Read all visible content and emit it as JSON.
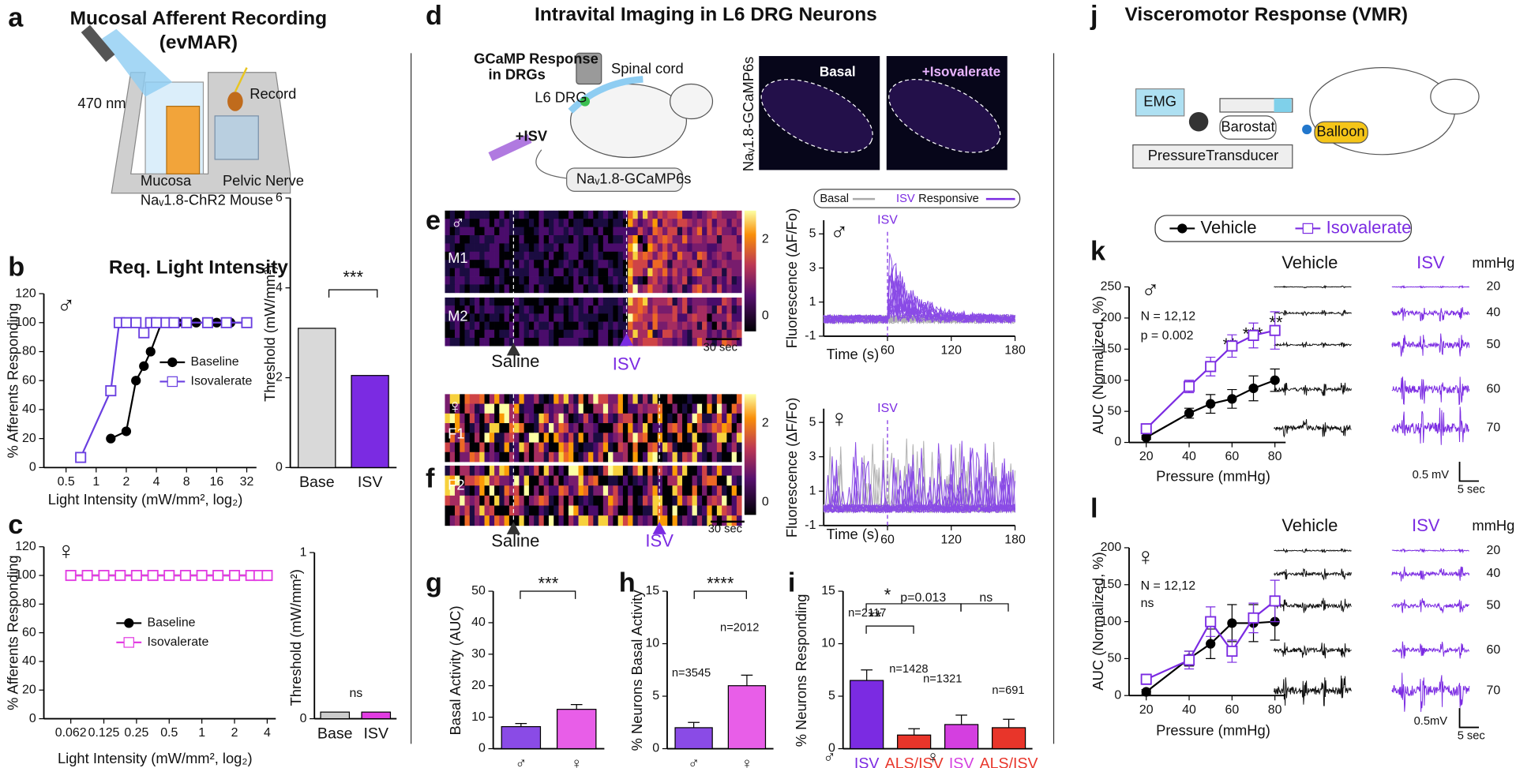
{
  "figure": {
    "panel_labels": [
      "a",
      "b",
      "c",
      "d",
      "e",
      "f",
      "g",
      "h",
      "i",
      "j",
      "k",
      "l"
    ],
    "a": {
      "title": "Mucosal Afferent Recording",
      "subtitle": "(evMAR)",
      "light": "470 nm",
      "record": "Record",
      "mucosa": "Mucosa",
      "nerve": "Pelvic Nerve",
      "mouse": "Naᵥ1.8-ChR2 Mouse"
    },
    "d": {
      "title": "Intravital Imaging in L6 DRG Neurons",
      "response": "GCaMP Response",
      "response2": "in DRGs",
      "spinal": "Spinal cord",
      "drg": "L6 DRG",
      "isv": "+ISV",
      "mouse": "Naᵥ1.8-GCaMP6s",
      "image_label": "Naᵥ1.8-GCaMP6s",
      "basal": "Basal",
      "isovalerate": "+Isovalerate",
      "legend": [
        "Basal",
        "ISV",
        "Responsive"
      ]
    },
    "e": {
      "sex": "♂",
      "rows": [
        "M1",
        "M2"
      ],
      "saline": "Saline",
      "isv": "ISV",
      "scale": "30 sec",
      "colorbar_ticks": [
        0,
        2
      ]
    },
    "f": {
      "sex": "♀",
      "rows": [
        "F1",
        "F2"
      ],
      "saline": "Saline",
      "isv": "ISV",
      "scale": "30 sec",
      "colorbar_ticks": [
        0,
        2
      ]
    },
    "j": {
      "title": "Visceromotor Response (VMR)",
      "emg": "EMG",
      "barostat": "Barostat",
      "balloon": "Balloon",
      "transducer": "PressureTransducer"
    },
    "k_traces": {
      "vehicle": "Vehicle",
      "isv": "ISV",
      "unit": "mmHg",
      "pressures": [
        20,
        40,
        50,
        60,
        70
      ],
      "scale_v": "0.5 mV",
      "scale_t": "5 sec"
    },
    "l_traces": {
      "vehicle": "Vehicle",
      "isv": "ISV",
      "unit": "mmHg",
      "pressures": [
        20,
        40,
        50,
        60,
        70
      ],
      "scale_v": "0.5mV",
      "scale_t": "5 sec"
    }
  },
  "chart_data": [
    {
      "type": "line",
      "title": "Req. Light Intensity",
      "sex": "♂",
      "x_label": "Light Intensity (mW/mm², log₂)",
      "y_label": "% Afferents Responding",
      "xscale": "log2",
      "xlim": [
        0.3,
        40
      ],
      "xticks": [
        0.5,
        1,
        2,
        4,
        8,
        16,
        32
      ],
      "ylim": [
        0,
        120
      ],
      "yticks": [
        0,
        20,
        40,
        60,
        80,
        100,
        120
      ],
      "series": [
        {
          "name": "Baseline",
          "color": "#000000",
          "marker": "circle",
          "x": [
            1.4,
            2,
            2.5,
            3,
            3.5,
            4.5,
            5.5,
            6.5,
            8,
            10,
            13,
            16,
            22,
            32
          ],
          "values": [
            20,
            25,
            60,
            70,
            80,
            100,
            100,
            100,
            100,
            100,
            100,
            100,
            100,
            100
          ]
        },
        {
          "name": "Isovalerate",
          "color": "#6a3fe0",
          "marker": "square",
          "x": [
            0.7,
            1.4,
            1.7,
            2,
            2.5,
            3,
            3.5,
            4,
            5,
            6,
            8,
            13,
            20,
            32
          ],
          "values": [
            7,
            53,
            100,
            100,
            100,
            93,
            100,
            100,
            100,
            100,
            100,
            100,
            100,
            100
          ]
        }
      ]
    },
    {
      "type": "bar",
      "y_label": "Threshold (mW/mm²)",
      "categories": [
        "Base",
        "ISV"
      ],
      "values": [
        3.1,
        2.05
      ],
      "colors": [
        "#d9d9d9",
        "#7b2be2"
      ],
      "ylim": [
        0,
        6
      ],
      "yticks": [
        0,
        2,
        4,
        6
      ],
      "annotations": [
        "***"
      ]
    },
    {
      "type": "line",
      "sex": "♀",
      "x_label": "Light Intensity (mW/mm², log₂)",
      "y_label": "% Afferents Responding",
      "xscale": "log2",
      "xlim": [
        0.035,
        4.8
      ],
      "xticks": [
        0.062,
        0.125,
        0.25,
        0.5,
        1,
        2,
        4
      ],
      "ylim": [
        0,
        120
      ],
      "yticks": [
        0,
        20,
        40,
        60,
        80,
        100,
        120
      ],
      "x": [
        0.062,
        0.088,
        0.125,
        0.177,
        0.25,
        0.354,
        0.5,
        0.707,
        1,
        1.41,
        2,
        2.83,
        3.36,
        4
      ],
      "series": [
        {
          "name": "Baseline",
          "color": "#000000",
          "marker": "circle",
          "values": [
            100,
            100,
            100,
            100,
            100,
            100,
            100,
            100,
            100,
            100,
            100,
            100,
            100,
            100
          ]
        },
        {
          "name": "Isovalerate",
          "color": "#e23ce2",
          "marker": "square",
          "values": [
            100,
            100,
            100,
            100,
            100,
            100,
            100,
            100,
            100,
            100,
            100,
            100,
            100,
            100
          ]
        }
      ]
    },
    {
      "type": "bar",
      "y_label": "Threshold (mW/mm²)",
      "categories": [
        "Base",
        "ISV"
      ],
      "values": [
        0.04,
        0.04
      ],
      "colors": [
        "#cccccc",
        "#e23ce2"
      ],
      "ylim": [
        0,
        1
      ],
      "yticks": [
        0,
        1
      ],
      "annotations": [
        "ns"
      ]
    },
    {
      "type": "trace",
      "sex": "♂",
      "x_label": "Time (s)",
      "y_label": "Fluorescence (ΔF/Fo)",
      "xlim": [
        0,
        180
      ],
      "xticks": [
        60,
        120,
        180
      ],
      "ylim": [
        -1,
        5.8
      ],
      "yticks": [
        -1,
        1,
        3,
        5
      ],
      "annotations": [
        {
          "text": "ISV",
          "x": 60
        }
      ]
    },
    {
      "type": "trace",
      "sex": "♀",
      "x_label": "Time (s)",
      "y_label": "Fluorescence (ΔF/Fo)",
      "xlim": [
        0,
        180
      ],
      "xticks": [
        60,
        120,
        180
      ],
      "ylim": [
        -1,
        5.8
      ],
      "yticks": [
        -1,
        1,
        3,
        5
      ],
      "annotations": [
        {
          "text": "ISV",
          "x": 60
        }
      ]
    },
    {
      "type": "bar",
      "y_label": "Basal Activity (AUC)",
      "categories": [
        "♂",
        "♀"
      ],
      "values": [
        7,
        12.5
      ],
      "errors": [
        1,
        1.5
      ],
      "colors": [
        "#8a4be6",
        "#e85ee8"
      ],
      "ylim": [
        0,
        50
      ],
      "yticks": [
        0,
        10,
        20,
        30,
        40,
        50
      ],
      "annotations": [
        "***"
      ]
    },
    {
      "type": "bar",
      "y_label": "% Neurons Basal Activity",
      "categories": [
        "♂",
        "♀"
      ],
      "values": [
        2,
        6
      ],
      "errors": [
        0.5,
        1
      ],
      "colors": [
        "#8a4be6",
        "#e85ee8"
      ],
      "ylim": [
        0,
        15
      ],
      "yticks": [
        0,
        5,
        10,
        15
      ],
      "n_labels": [
        "n=3545",
        "n=2012"
      ],
      "annotations": [
        "****"
      ]
    },
    {
      "type": "bar",
      "y_label": "% Neurons Responding",
      "categories": [
        "ISV",
        "ALS/ISV",
        "ISV",
        "ALS/ISV"
      ],
      "group_labels": [
        "♂",
        "♀"
      ],
      "values": [
        6.5,
        1.3,
        2.3,
        2
      ],
      "errors": [
        1,
        0.6,
        0.9,
        0.8
      ],
      "colors": [
        "#7b2be2",
        "#e8352a",
        "#d43fe0",
        "#e8352a"
      ],
      "ylim": [
        0,
        15
      ],
      "yticks": [
        0,
        5,
        10,
        15
      ],
      "n_labels": [
        "n=2117",
        "n=1428",
        "n=1321",
        "n=691"
      ],
      "annotations": [
        "**",
        "*",
        "p=0.013",
        "ns"
      ]
    },
    {
      "type": "line",
      "sex": "♂",
      "x_label": "Pressure (mmHg)",
      "y_label": "AUC (Normalized, %)",
      "xlim": [
        12,
        85
      ],
      "xticks": [
        20,
        40,
        60,
        80
      ],
      "ylim": [
        0,
        250
      ],
      "yticks": [
        0,
        50,
        100,
        150,
        200,
        250
      ],
      "x": [
        20,
        40,
        50,
        60,
        70,
        80
      ],
      "series": [
        {
          "name": "Vehicle",
          "color": "#000000",
          "marker": "circle",
          "values": [
            8,
            47,
            62,
            70,
            87,
            100
          ],
          "errors": [
            3,
            8,
            15,
            15,
            20,
            18
          ]
        },
        {
          "name": "Isovalerate",
          "color": "#7b2be2",
          "marker": "square",
          "values": [
            22,
            90,
            122,
            155,
            172,
            180
          ],
          "errors": [
            5,
            10,
            15,
            18,
            20,
            30
          ]
        }
      ],
      "annotations": [
        "N = 12,12",
        "p = 0.002",
        "*",
        "**",
        "***",
        "**"
      ]
    },
    {
      "type": "line",
      "sex": "♀",
      "legend": false,
      "x_label": "Pressure (mmHg)",
      "y_label": "AUC (Normalized, %)",
      "xlim": [
        12,
        85
      ],
      "xticks": [
        20,
        40,
        60,
        80
      ],
      "ylim": [
        0,
        200
      ],
      "yticks": [
        0,
        50,
        100,
        150,
        200
      ],
      "x": [
        20,
        40,
        50,
        60,
        70,
        80
      ],
      "series": [
        {
          "name": "Vehicle",
          "color": "#000000",
          "marker": "circle",
          "values": [
            5,
            50,
            70,
            98,
            98,
            100
          ],
          "errors": [
            3,
            10,
            20,
            25,
            25,
            25
          ]
        },
        {
          "name": "Isovalerate",
          "color": "#7b2be2",
          "marker": "square",
          "values": [
            22,
            48,
            100,
            60,
            105,
            128
          ],
          "errors": [
            7,
            12,
            20,
            15,
            20,
            28
          ]
        }
      ],
      "annotations": [
        "N = 12,12",
        "ns"
      ]
    }
  ]
}
